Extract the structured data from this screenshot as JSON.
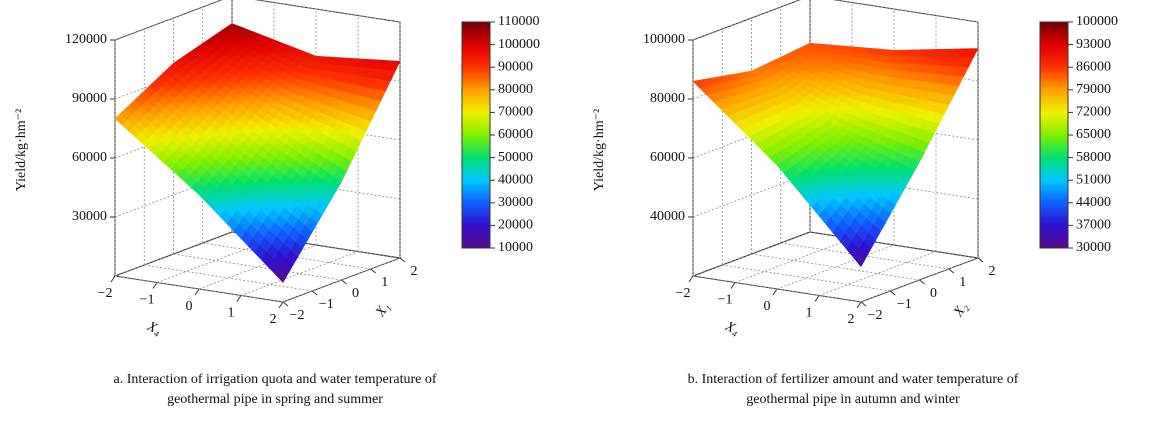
{
  "chart_data": [
    {
      "type": "surface3d",
      "zlabel": "Yield/kg·hm⁻²",
      "xlabel": "X₄",
      "ylabel": "X₁",
      "caption": [
        "a. Interaction of irrigation quota and water temperature of",
        "geothermal pipe in spring and summer"
      ],
      "x": [
        -2,
        0,
        2
      ],
      "y": [
        -2,
        0,
        2
      ],
      "z": [
        [
          80000,
          97000,
          106000
        ],
        [
          48000,
          72000,
          96000
        ],
        [
          10000,
          50000,
          100000
        ]
      ],
      "xlim": [
        -2,
        2
      ],
      "ylim": [
        -2,
        2
      ],
      "zlim": [
        0,
        120000
      ],
      "xticks": [
        {
          "value": -2,
          "label": "−2"
        },
        {
          "value": -1,
          "label": "−1"
        },
        0,
        1,
        2
      ],
      "yticks": [
        {
          "value": -2,
          "label": "−2"
        },
        {
          "value": -1,
          "label": "−1"
        },
        0,
        1,
        2
      ],
      "zticks": [
        30000,
        60000,
        90000,
        120000
      ],
      "colorbar_ticks": [
        10000,
        20000,
        30000,
        40000,
        50000,
        60000,
        70000,
        80000,
        90000,
        100000,
        110000
      ],
      "grid": true
    },
    {
      "type": "surface3d",
      "zlabel": "Yield/kg·hm⁻²",
      "xlabel": "X₄",
      "ylabel": "X₂",
      "caption": [
        "b. Interaction of fertilizer amount and water temperature of",
        "geothermal pipe in autumn and winter"
      ],
      "x": [
        -2,
        0,
        2
      ],
      "y": [
        -2,
        0,
        2
      ],
      "z": [
        [
          86000,
          82000,
          84000
        ],
        [
          62000,
          68000,
          86000
        ],
        [
          32000,
          60000,
          91000
        ]
      ],
      "xlim": [
        -2,
        2
      ],
      "ylim": [
        -2,
        2
      ],
      "zlim": [
        20000,
        100000
      ],
      "xticks": [
        {
          "value": -2,
          "label": "−2"
        },
        {
          "value": -1,
          "label": "−1"
        },
        0,
        1,
        2
      ],
      "yticks": [
        {
          "value": -2,
          "label": "−2"
        },
        {
          "value": -1,
          "label": "−1"
        },
        0,
        1,
        2
      ],
      "zticks": [
        40000,
        60000,
        80000,
        100000
      ],
      "colorbar_ticks": [
        30000,
        37000,
        44000,
        51000,
        58000,
        65000,
        72000,
        79000,
        86000,
        93000,
        100000
      ],
      "grid": true
    }
  ]
}
